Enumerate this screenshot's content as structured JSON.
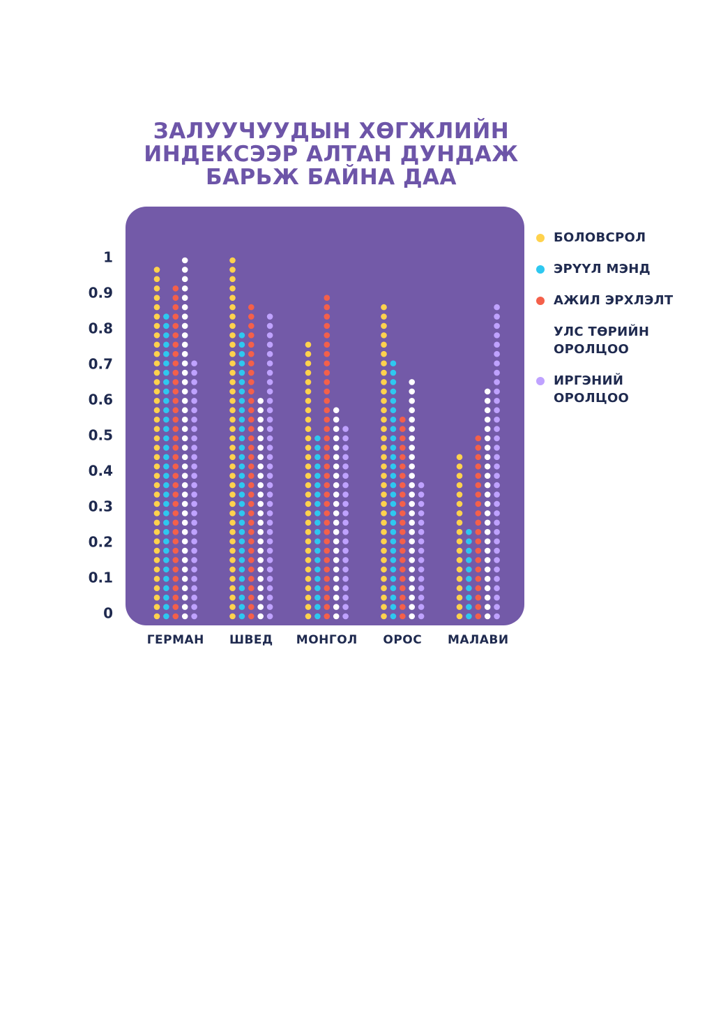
{
  "title_lines": [
    "ЗАЛУУЧУУДЫН ХӨГЖЛИЙН",
    "ИНДЕКСЭЭР АЛТАН ДУНДАЖ",
    "БАРЬЖ БАЙНА ДАА"
  ],
  "legend": [
    {
      "label_lines": [
        "БОЛОВСРОЛ"
      ]
    },
    {
      "label_lines": [
        "ЭРҮҮЛ МЭНД"
      ]
    },
    {
      "label_lines": [
        "АЖИЛ ЭРХЛЭЛТ"
      ]
    },
    {
      "label_lines": [
        "УЛС ТӨРИЙН",
        "ОРОЛЦОО"
      ]
    },
    {
      "label_lines": [
        "ИРГЭНИЙ",
        "ОРОЛЦОО"
      ]
    }
  ],
  "colors": {
    "title": "#6d55a8",
    "panel": "#735aa8",
    "text": "#1f2a4f"
  },
  "chart_data": {
    "type": "bar",
    "title": "ЗАЛУУЧУУДЫН ХӨГЖЛИЙН ИНДЕКСЭЭР АЛТАН ДУНДАЖ БАРЬЖ БАЙНА ДАА",
    "categories": [
      "ГЕРМАН",
      "ШВЕД",
      "МОНГОЛ",
      "ОРОС",
      "МАЛАВИ"
    ],
    "y_ticks": [
      "0",
      "0.1",
      "0.2",
      "0.3",
      "0.4",
      "0.5",
      "0.6",
      "0.7",
      "0.8",
      "0.9",
      "1"
    ],
    "ylim": [
      0,
      1
    ],
    "grid": false,
    "legend_position": "right",
    "series": [
      {
        "name": "БОЛОВСРОЛ",
        "color": "#ffd24d",
        "values": [
          0.97,
          1.0,
          0.76,
          0.87,
          0.44
        ]
      },
      {
        "name": "ЭРҮҮЛ МЭНД",
        "color": "#2ec8f0",
        "values": [
          0.84,
          0.79,
          0.49,
          0.71,
          0.23
        ]
      },
      {
        "name": "АЖИЛ ЭРХЛЭЛТ",
        "color": "#f4604a",
        "values": [
          0.92,
          0.87,
          0.89,
          0.55,
          0.49
        ]
      },
      {
        "name": "УЛС ТӨРИЙН ОРОЛЦОО",
        "color": "#ffffff",
        "values": [
          1.0,
          0.6,
          0.57,
          0.65,
          0.63
        ]
      },
      {
        "name": "ИРГЭНИЙ ОРОЛЦОО",
        "color": "#bfa2ff",
        "values": [
          0.71,
          0.84,
          0.52,
          0.36,
          0.87
        ]
      }
    ]
  }
}
